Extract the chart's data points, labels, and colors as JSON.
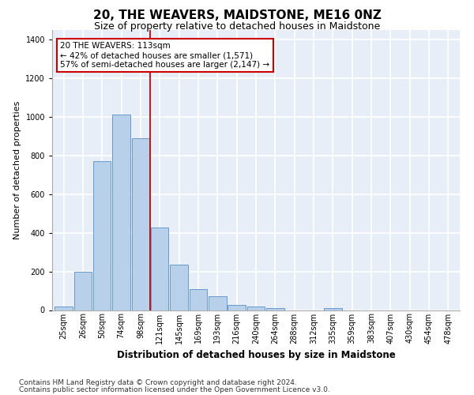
{
  "title": "20, THE WEAVERS, MAIDSTONE, ME16 0NZ",
  "subtitle": "Size of property relative to detached houses in Maidstone",
  "xlabel": "Distribution of detached houses by size in Maidstone",
  "ylabel": "Number of detached properties",
  "categories": [
    "25sqm",
    "26sqm",
    "50sqm",
    "74sqm",
    "98sqm",
    "121sqm",
    "145sqm",
    "169sqm",
    "193sqm",
    "216sqm",
    "240sqm",
    "264sqm",
    "288sqm",
    "312sqm",
    "335sqm",
    "359sqm",
    "383sqm",
    "407sqm",
    "430sqm",
    "454sqm",
    "478sqm"
  ],
  "values": [
    20,
    200,
    770,
    1010,
    890,
    425,
    235,
    110,
    70,
    25,
    20,
    10,
    0,
    0,
    10,
    0,
    0,
    0,
    0,
    0,
    0
  ],
  "bar_color": "#b8d0ea",
  "bar_edge_color": "#6699cc",
  "vline_x": 4.5,
  "vline_color": "#cc0000",
  "annotation_text": "20 THE WEAVERS: 113sqm\n← 42% of detached houses are smaller (1,571)\n57% of semi-detached houses are larger (2,147) →",
  "annotation_box_color": "#ffffff",
  "annotation_box_edge": "#cc0000",
  "ylim": [
    0,
    1450
  ],
  "yticks": [
    0,
    200,
    400,
    600,
    800,
    1000,
    1200,
    1400
  ],
  "background_color": "#e8eef8",
  "grid_color": "#ffffff",
  "footer1": "Contains HM Land Registry data © Crown copyright and database right 2024.",
  "footer2": "Contains public sector information licensed under the Open Government Licence v3.0.",
  "title_fontsize": 11,
  "subtitle_fontsize": 9,
  "xlabel_fontsize": 8.5,
  "ylabel_fontsize": 8,
  "tick_fontsize": 7,
  "annotation_fontsize": 7.5,
  "footer_fontsize": 6.5
}
